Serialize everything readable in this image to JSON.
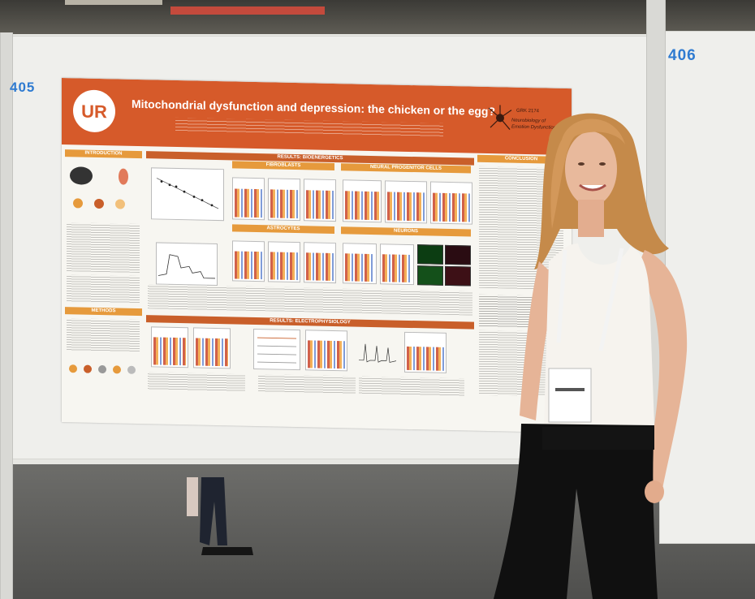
{
  "panels": {
    "left_number": "405",
    "right_number": "406"
  },
  "poster": {
    "title": "Mitochondrial dysfunction and depression: the chicken or the egg?",
    "logo_text": "UR",
    "grk_line1": "GRK 2174",
    "grk_line2": "Neurobiology of",
    "grk_line3": "Emotion Dysfunctions",
    "sections": {
      "introduction": "INTRODUCTION",
      "results_bio": "RESULTS: BIOENERGETICS",
      "conclusion": "CONCLUSION",
      "fibroblasts": "FIBROBLASTS",
      "npc": "NEURAL PROGENITOR CELLS",
      "astrocytes": "ASTROCYTES",
      "neurons": "NEURONS",
      "methods": "METHODS",
      "results_ephys": "RESULTS: ELECTROPHYSIOLOGY"
    }
  },
  "colors": {
    "poster_header": "#d65a2a",
    "section_header": "#e69a3c",
    "panel_number": "#2f7bd1"
  }
}
